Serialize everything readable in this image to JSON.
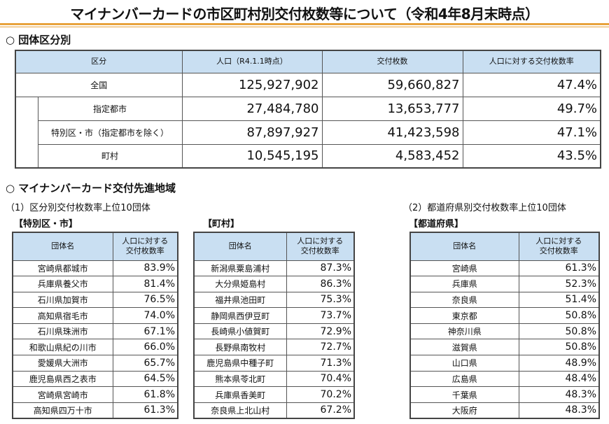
{
  "title": "マイナンバーカードの市区町村別交付枚数等について（令和4年8月末時点）",
  "section1": {
    "heading": "○ 団体区分別",
    "headers": [
      "区分",
      "人口（R4.1.1時点）",
      "交付枚数",
      "人口に対する交付枚数率"
    ],
    "rows": [
      {
        "label": "全国",
        "population": "125,927,902",
        "issued": "59,660,827",
        "rate": "47.4%"
      },
      {
        "label": "指定都市",
        "population": "27,484,780",
        "issued": "13,653,777",
        "rate": "49.7%"
      },
      {
        "label": "特別区・市（指定都市を除く）",
        "population": "87,897,927",
        "issued": "41,423,598",
        "rate": "47.1%"
      },
      {
        "label": "町村",
        "population": "10,545,195",
        "issued": "4,583,452",
        "rate": "43.5%"
      }
    ]
  },
  "section2": {
    "heading": "○ マイナンバーカード交付先進地域",
    "sub1": "（1）区分別交付枚数率上位10団体",
    "sub2": "（2）都道府県別交付枚数率上位10団体",
    "col_name": "団体名",
    "col_rate": "人口に対する交付枚数率",
    "tables": [
      {
        "label": "【特別区・市】",
        "rows": [
          [
            "宮崎県都城市",
            "83.9%"
          ],
          [
            "兵庫県養父市",
            "81.4%"
          ],
          [
            "石川県加賀市",
            "76.5%"
          ],
          [
            "高知県宿毛市",
            "74.0%"
          ],
          [
            "石川県珠洲市",
            "67.1%"
          ],
          [
            "和歌山県紀の川市",
            "66.0%"
          ],
          [
            "愛媛県大洲市",
            "65.7%"
          ],
          [
            "鹿児島県西之表市",
            "64.5%"
          ],
          [
            "宮崎県宮崎市",
            "61.8%"
          ],
          [
            "高知県四万十市",
            "61.3%"
          ]
        ]
      },
      {
        "label": "【町村】",
        "rows": [
          [
            "新潟県粟島浦村",
            "87.3%"
          ],
          [
            "大分県姫島村",
            "86.3%"
          ],
          [
            "福井県池田町",
            "75.3%"
          ],
          [
            "静岡県西伊豆町",
            "73.7%"
          ],
          [
            "長崎県小値賀町",
            "72.9%"
          ],
          [
            "長野県南牧村",
            "72.7%"
          ],
          [
            "鹿児島県中種子町",
            "71.3%"
          ],
          [
            "熊本県苓北町",
            "70.4%"
          ],
          [
            "兵庫県香美町",
            "70.2%"
          ],
          [
            "奈良県上北山村",
            "67.2%"
          ]
        ]
      },
      {
        "label": "【都道府県】",
        "rows": [
          [
            "宮崎県",
            "61.3%"
          ],
          [
            "兵庫県",
            "52.3%"
          ],
          [
            "奈良県",
            "51.4%"
          ],
          [
            "東京都",
            "50.8%"
          ],
          [
            "神奈川県",
            "50.8%"
          ],
          [
            "滋賀県",
            "50.8%"
          ],
          [
            "山口県",
            "48.9%"
          ],
          [
            "広島県",
            "48.4%"
          ],
          [
            "千葉県",
            "48.3%"
          ],
          [
            "大阪府",
            "48.3%"
          ]
        ]
      }
    ]
  }
}
